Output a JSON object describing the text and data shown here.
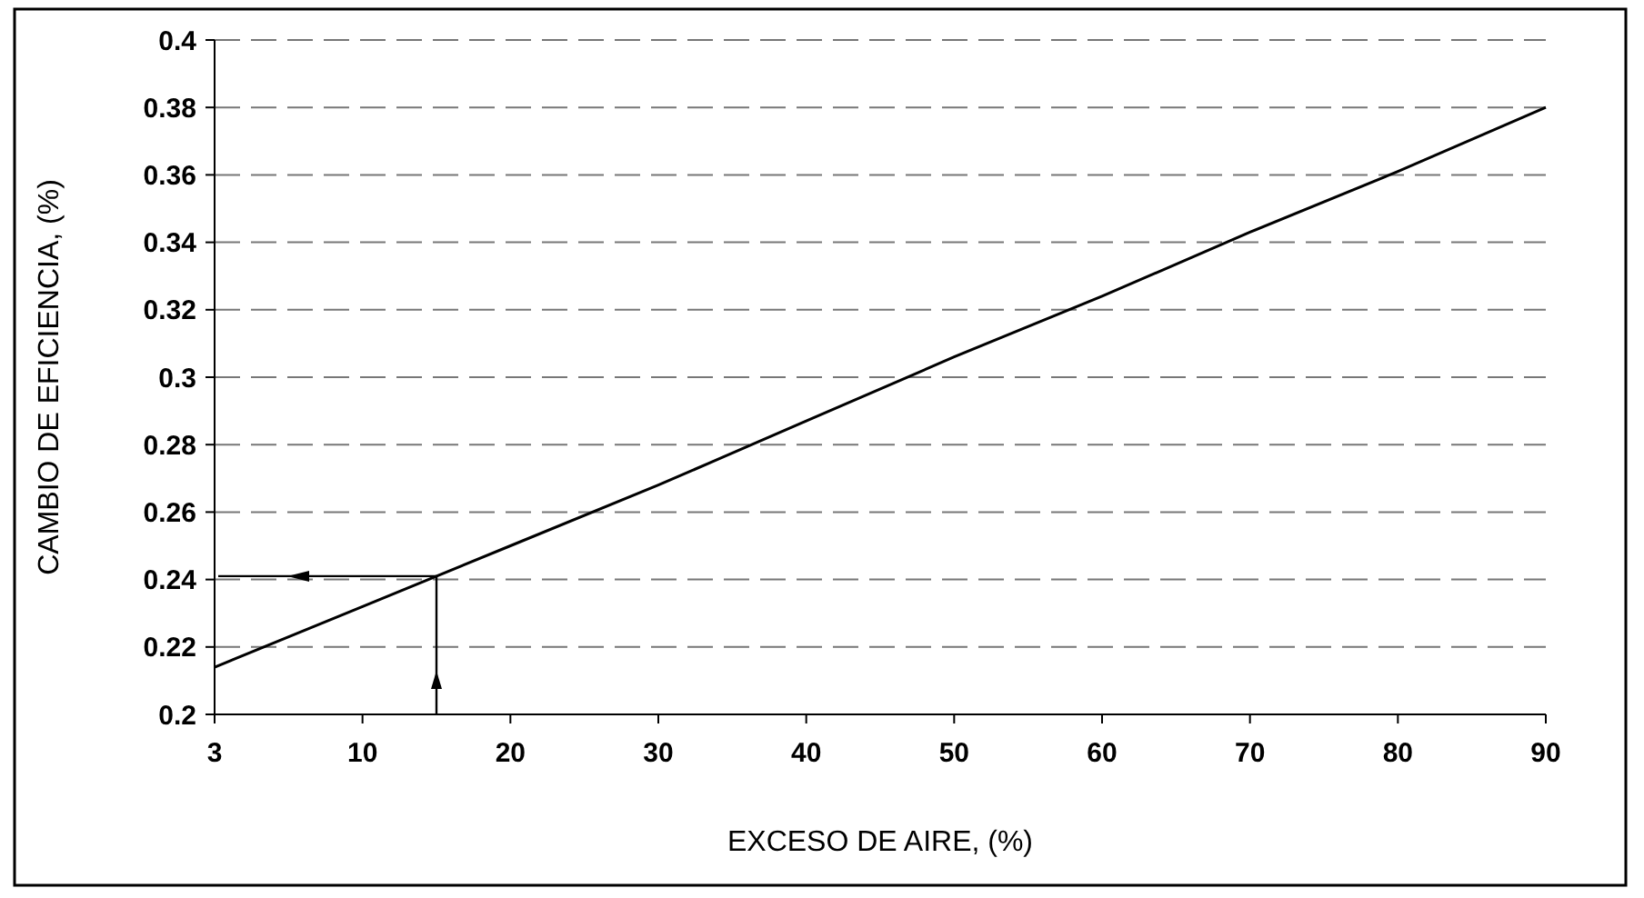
{
  "chart_data": {
    "type": "line",
    "xlabel": "EXCESO DE AIRE, (%)",
    "ylabel": "CAMBIO DE EFICIENCIA, (%)",
    "categories": [
      "3",
      "10",
      "20",
      "30",
      "40",
      "50",
      "60",
      "70",
      "80",
      "90"
    ],
    "series": [
      {
        "color": "#000000",
        "values": [
          0.214,
          0.232,
          0.25,
          0.268,
          0.287,
          0.306,
          0.324,
          0.343,
          0.361,
          0.38
        ]
      }
    ],
    "ylim": [
      0.2,
      0.4
    ],
    "yticks": [
      0.2,
      0.22,
      0.24,
      0.26,
      0.28,
      0.3,
      0.32,
      0.34,
      0.36,
      0.38,
      0.4
    ],
    "grid": "y",
    "marker": "none",
    "line_style": "solid"
  }
}
